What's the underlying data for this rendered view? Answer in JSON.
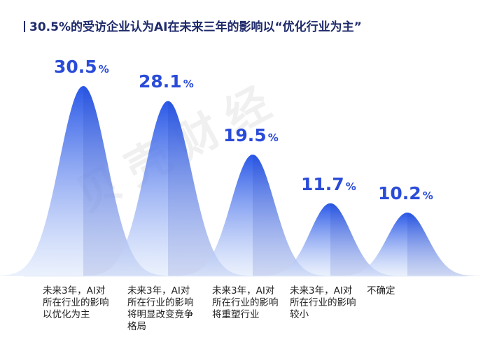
{
  "title": "30.5%的受访企业认为AI在未来三年的影响以“优化行业为主”",
  "watermark": "贝壳财经",
  "percent_sign": "%",
  "colors": {
    "peak": "#1e4fe6",
    "light": "#dbe6fb",
    "title": "#1f2a6b",
    "value": "#2a4bd8"
  },
  "chart_data": {
    "type": "area",
    "title": "30.5%的受访企业认为AI在未来三年的影响以“优化行业为主”",
    "categories": [
      [
        "未来3年，AI对",
        "所在行业的影响",
        "以优化为主"
      ],
      [
        "未来3年，AI对",
        "所在行业的影响",
        "将明显改变竞争",
        "格局"
      ],
      [
        "未来3年，AI对",
        "所在行业的影响",
        "将重塑行业"
      ],
      [
        "未来3年，AI对",
        "所在行业的影响",
        "较小"
      ],
      [
        "不确定"
      ]
    ],
    "values": [
      30.5,
      28.1,
      19.5,
      11.7,
      10.2
    ],
    "value_labels": [
      "30.5",
      "28.1",
      "19.5",
      "11.7",
      "10.2"
    ],
    "unit": "%",
    "grid": false,
    "legend": "none"
  }
}
